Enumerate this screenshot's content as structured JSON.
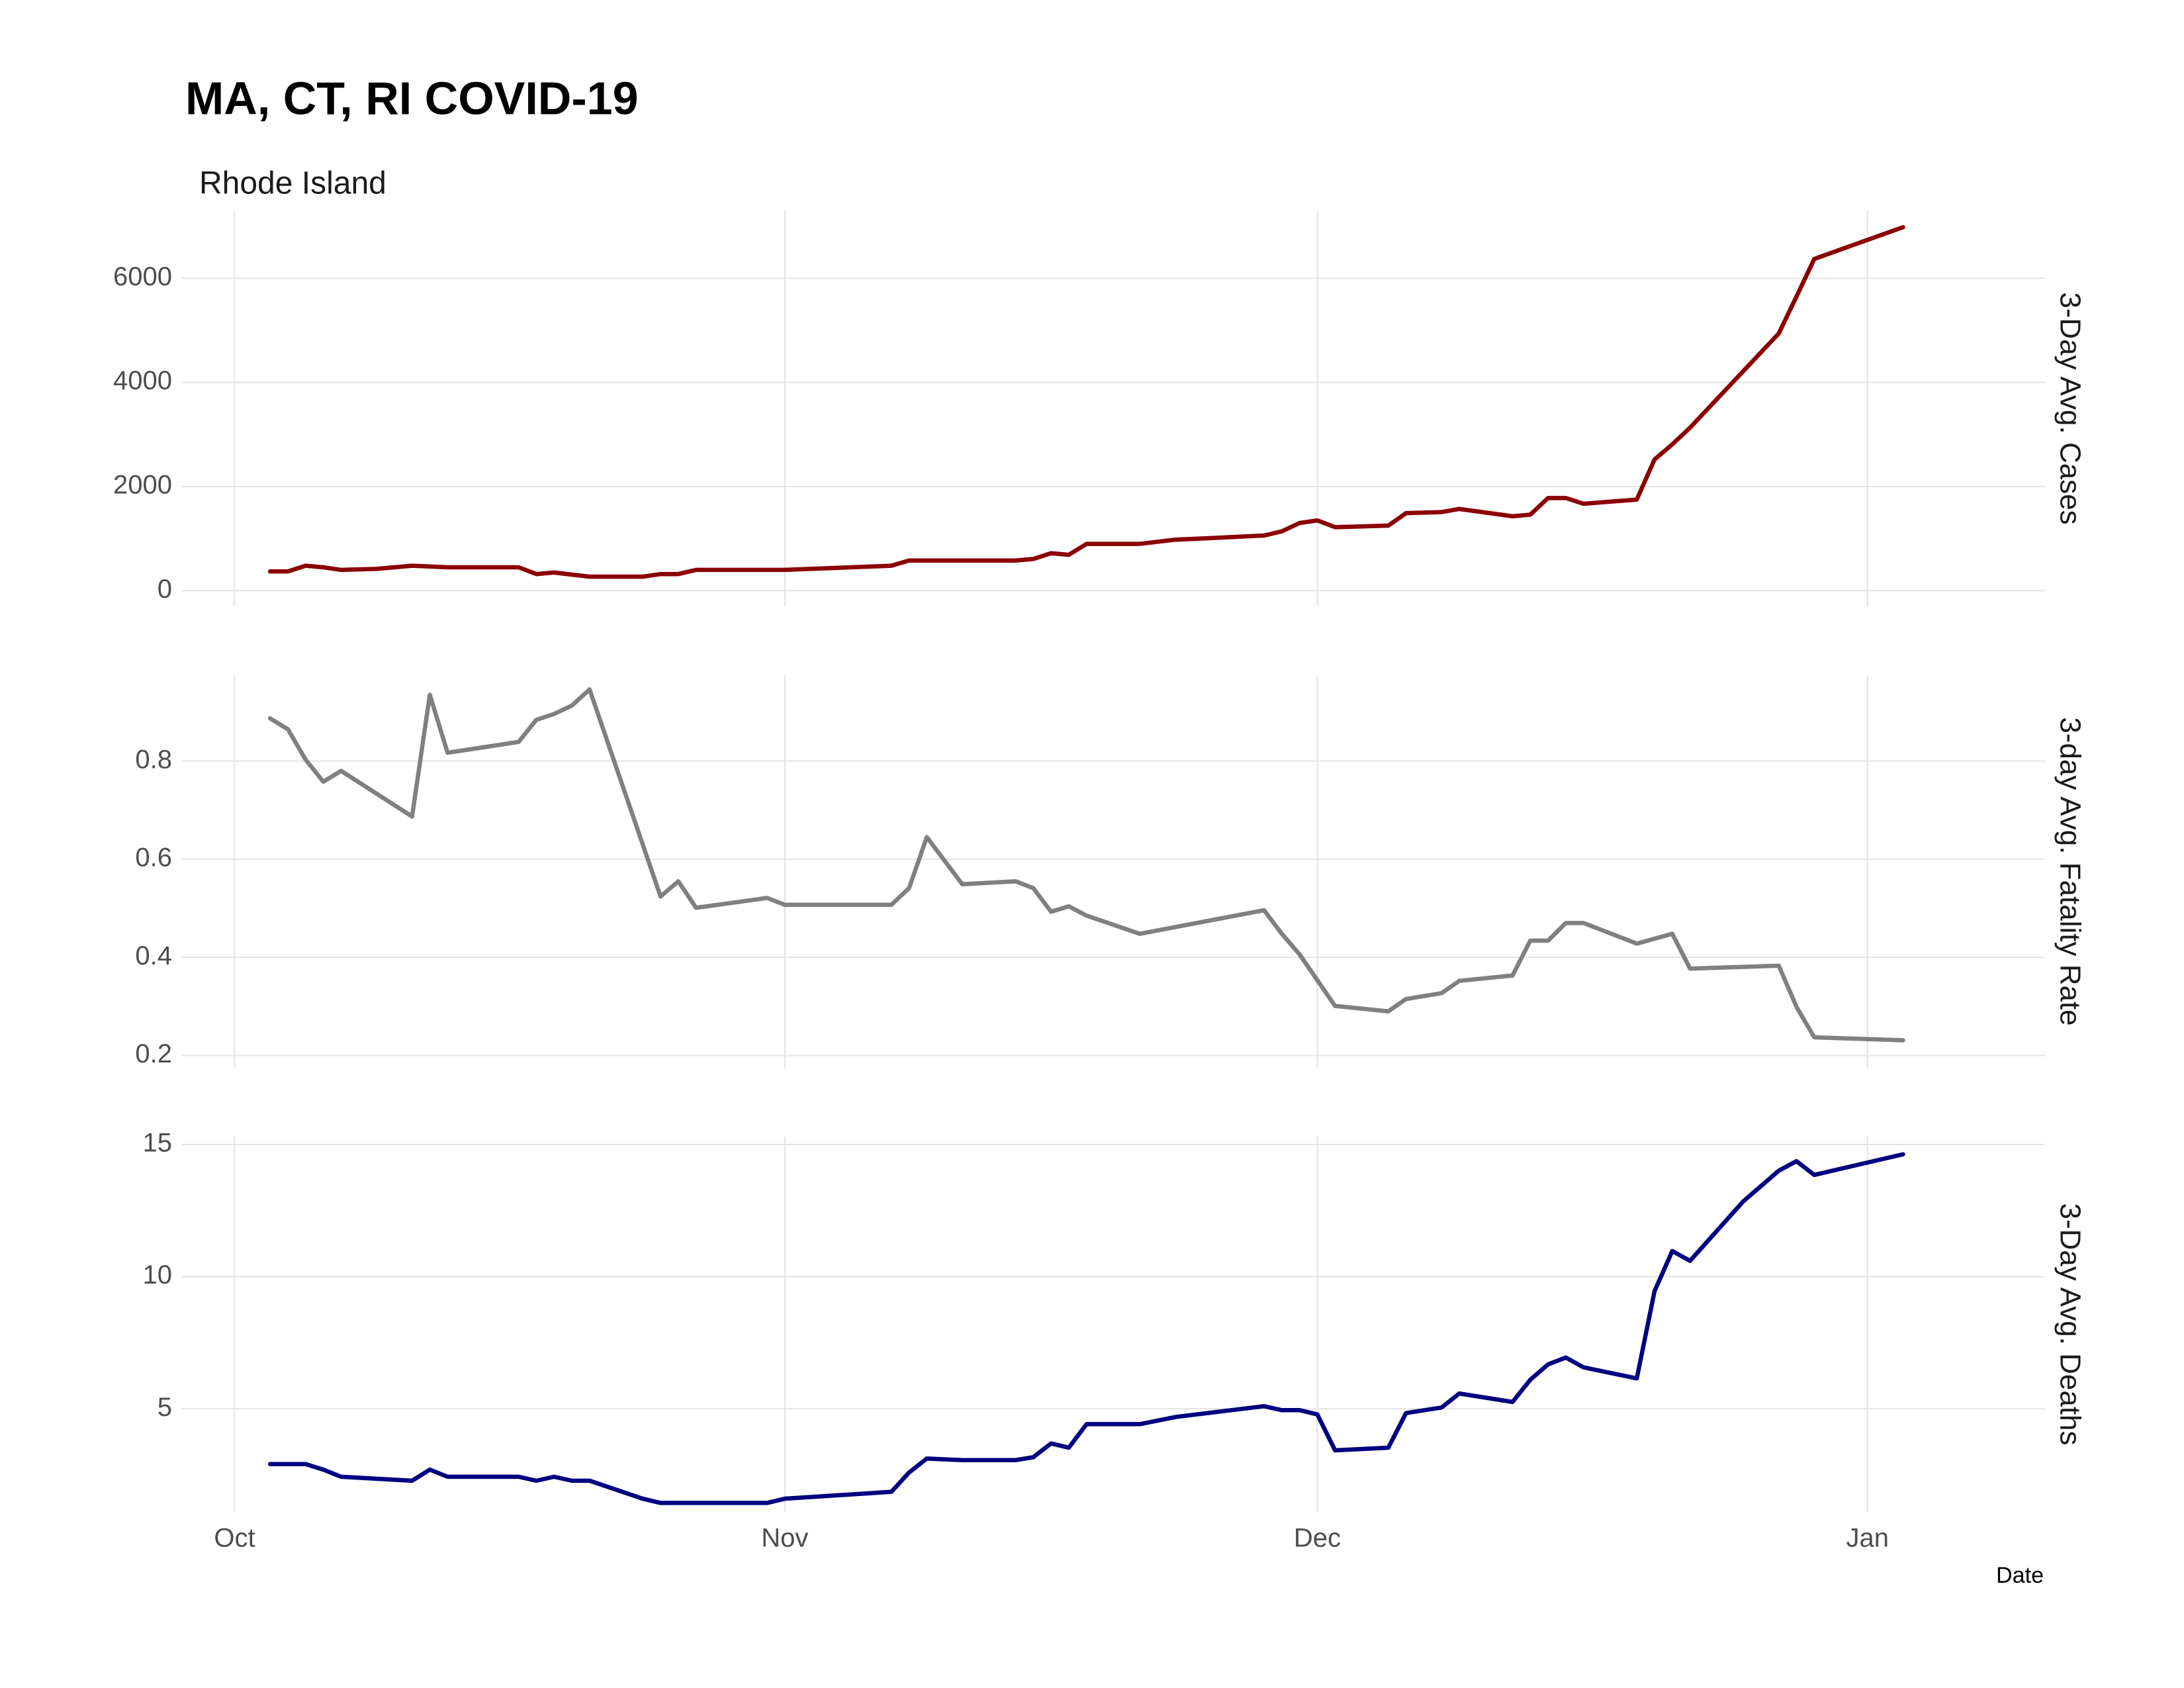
{
  "title": "MA, CT, RI COVID-19",
  "subtitle": "Rhode Island",
  "chart_data": [
    {
      "type": "line",
      "ylabel": "3-Day Avg. Cases",
      "color": "#8b0000",
      "grid": true,
      "xlim": [
        -3,
        102
      ],
      "xticks": [
        {
          "value": 0,
          "label": "Oct"
        },
        {
          "value": 31,
          "label": "Nov"
        },
        {
          "value": 61,
          "label": "Dec"
        },
        {
          "value": 92,
          "label": "Jan"
        }
      ],
      "ylim": [
        -300,
        7300
      ],
      "yticks": [
        0,
        2000,
        4000,
        6000
      ],
      "x": [
        2,
        3,
        4,
        5,
        6,
        8,
        10,
        12,
        16,
        17,
        18,
        20,
        23,
        24,
        25,
        26,
        28,
        31,
        37,
        38,
        40,
        42,
        44,
        45,
        46,
        47,
        48,
        51,
        53,
        55,
        58,
        59,
        60,
        61,
        62,
        65,
        66,
        68,
        69,
        72,
        73,
        74,
        75,
        76,
        79,
        80,
        81,
        82,
        87,
        88,
        89,
        94
      ],
      "values": [
        370,
        370,
        480,
        450,
        400,
        420,
        480,
        450,
        450,
        320,
        350,
        270,
        270,
        320,
        320,
        400,
        400,
        400,
        480,
        580,
        580,
        580,
        580,
        610,
        720,
        690,
        900,
        900,
        980,
        1010,
        1060,
        1140,
        1300,
        1350,
        1220,
        1250,
        1490,
        1510,
        1570,
        1430,
        1460,
        1780,
        1780,
        1670,
        1750,
        2520,
        2810,
        3130,
        4940,
        5650,
        6370,
        6980
      ]
    },
    {
      "type": "line",
      "ylabel": "3-day Avg. Fatality Rate",
      "color": "#808080",
      "grid": true,
      "xlim": [
        -3,
        102
      ],
      "xticks": [
        {
          "value": 0,
          "label": "Oct"
        },
        {
          "value": 31,
          "label": "Nov"
        },
        {
          "value": 61,
          "label": "Dec"
        },
        {
          "value": 92,
          "label": "Jan"
        }
      ],
      "ylim": [
        0.175,
        0.975
      ],
      "yticks": [
        0.2,
        0.4,
        0.6,
        0.8
      ],
      "x": [
        2,
        3,
        4,
        5,
        6,
        10,
        11,
        12,
        16,
        17,
        18,
        19,
        20,
        24,
        25,
        26,
        30,
        31,
        37,
        38,
        39,
        41,
        44,
        45,
        46,
        47,
        48,
        51,
        58,
        59,
        60,
        62,
        65,
        66,
        68,
        69,
        72,
        73,
        74,
        75,
        76,
        79,
        81,
        82,
        87,
        88,
        89,
        94
      ],
      "values": [
        0.887,
        0.865,
        0.803,
        0.758,
        0.78,
        0.687,
        0.935,
        0.817,
        0.839,
        0.884,
        0.896,
        0.913,
        0.946,
        0.524,
        0.555,
        0.501,
        0.521,
        0.507,
        0.507,
        0.541,
        0.645,
        0.549,
        0.555,
        0.541,
        0.493,
        0.504,
        0.485,
        0.448,
        0.496,
        0.448,
        0.406,
        0.301,
        0.29,
        0.315,
        0.327,
        0.352,
        0.363,
        0.434,
        0.434,
        0.47,
        0.47,
        0.428,
        0.448,
        0.377,
        0.383,
        0.299,
        0.237,
        0.231
      ]
    },
    {
      "type": "line",
      "ylabel": "3-Day Avg. Deaths",
      "color": "#000080",
      "grid": true,
      "xlim": [
        -3,
        102
      ],
      "xticks": [
        {
          "value": 0,
          "label": "Oct"
        },
        {
          "value": 31,
          "label": "Nov"
        },
        {
          "value": 61,
          "label": "Dec"
        },
        {
          "value": 92,
          "label": "Jan"
        }
      ],
      "xlabel": "Date",
      "ylim": [
        1.1,
        15.3
      ],
      "yticks": [
        5,
        10,
        15
      ],
      "x": [
        2,
        4,
        5,
        6,
        10,
        11,
        12,
        16,
        17,
        18,
        19,
        20,
        23,
        24,
        30,
        31,
        37,
        38,
        39,
        41,
        44,
        45,
        46,
        47,
        48,
        51,
        53,
        58,
        59,
        60,
        61,
        62,
        65,
        66,
        68,
        69,
        72,
        73,
        74,
        75,
        76,
        79,
        80,
        81,
        82,
        85,
        87,
        88,
        89,
        94
      ],
      "values": [
        2.91,
        2.91,
        2.7,
        2.43,
        2.28,
        2.7,
        2.43,
        2.43,
        2.28,
        2.43,
        2.28,
        2.28,
        1.6,
        1.44,
        1.44,
        1.6,
        1.86,
        2.59,
        3.12,
        3.06,
        3.06,
        3.17,
        3.69,
        3.53,
        4.42,
        4.42,
        4.69,
        5.1,
        4.95,
        4.95,
        4.79,
        3.43,
        3.53,
        4.84,
        5.05,
        5.58,
        5.26,
        6.1,
        6.68,
        6.94,
        6.57,
        6.15,
        9.45,
        10.97,
        10.6,
        12.85,
        14.01,
        14.37,
        13.85,
        14.63
      ]
    }
  ]
}
